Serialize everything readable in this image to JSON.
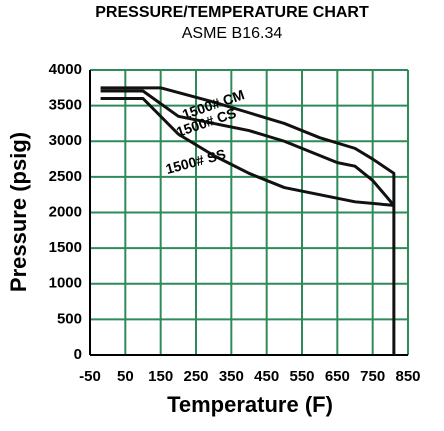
{
  "chart_data": {
    "type": "line",
    "title": "PRESSURE/TEMPERATURE CHART",
    "subtitle": "ASME B16.34",
    "x_label": "Temperature (F)",
    "y_label": "Pressure (psig)",
    "xlim": [
      -50,
      850
    ],
    "xticks": [
      -50,
      50,
      150,
      250,
      350,
      450,
      550,
      650,
      750,
      850
    ],
    "ylim": [
      0,
      4000
    ],
    "yticks": [
      0,
      500,
      1000,
      1500,
      2000,
      2500,
      3000,
      3500,
      4000
    ],
    "grid": true,
    "grid_color": "#2e8b57",
    "series": [
      {
        "name": "1500# CM",
        "color": "#111111",
        "x": [
          -20,
          150,
          300,
          400,
          500,
          600,
          700,
          750,
          810,
          810
        ],
        "values": [
          3750,
          3750,
          3550,
          3400,
          3250,
          3050,
          2900,
          2750,
          2550,
          0
        ]
      },
      {
        "name": "1500# CS",
        "color": "#111111",
        "x": [
          -20,
          100,
          200,
          300,
          400,
          500,
          600,
          650,
          700,
          750,
          810
        ],
        "values": [
          3705,
          3705,
          3350,
          3250,
          3150,
          3000,
          2800,
          2700,
          2650,
          2450,
          2100
        ]
      },
      {
        "name": "1500# SS",
        "color": "#111111",
        "x": [
          -20,
          100,
          200,
          300,
          400,
          500,
          600,
          700,
          810
        ],
        "values": [
          3600,
          3600,
          3100,
          2800,
          2550,
          2350,
          2250,
          2150,
          2100
        ]
      }
    ]
  }
}
